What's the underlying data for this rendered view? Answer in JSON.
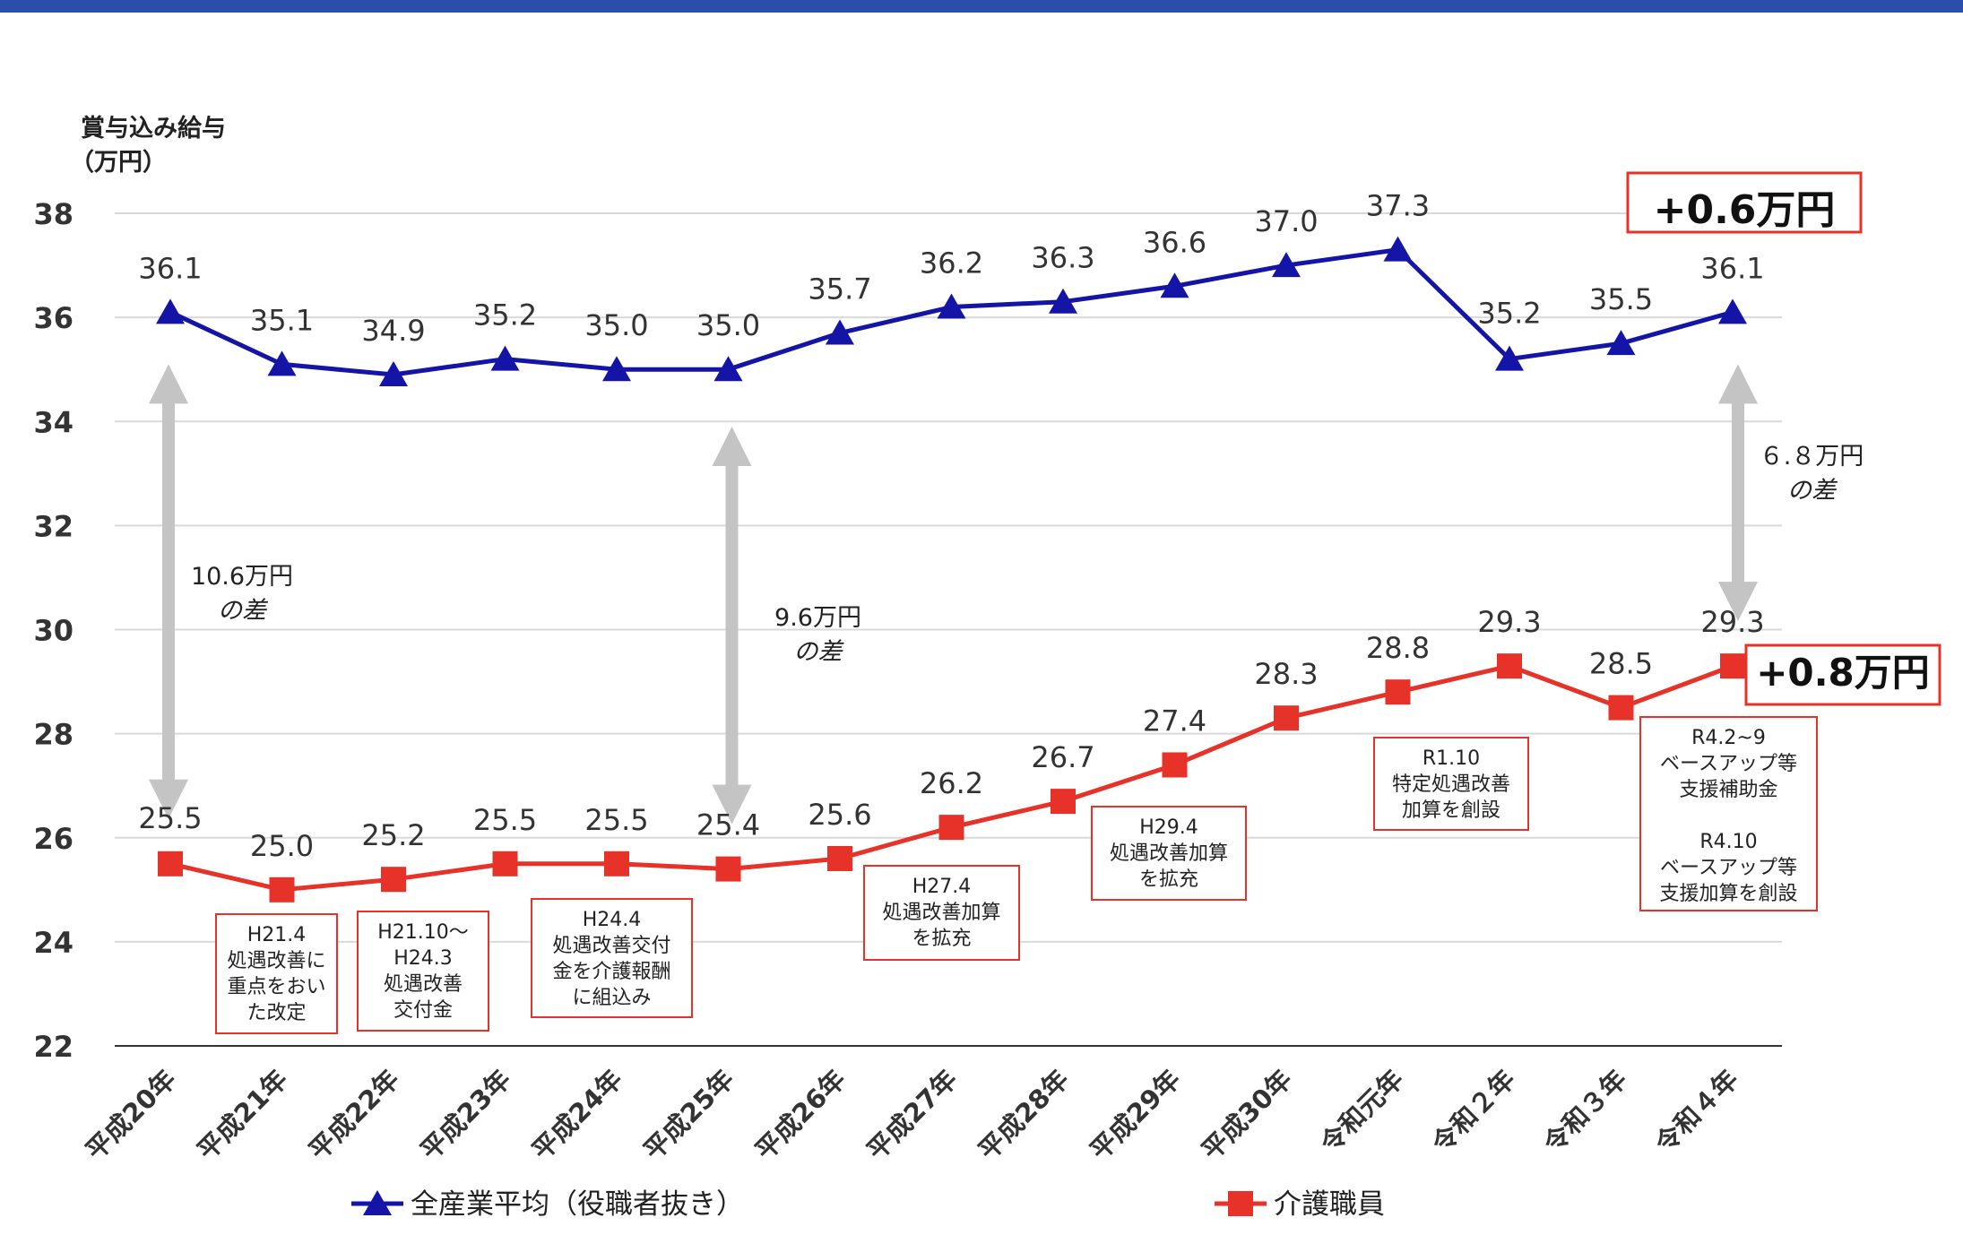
{
  "chart_data": {
    "type": "line",
    "ylabel_line1": "賞与込み給与",
    "ylabel_line2": "（万円）",
    "ylim": [
      22,
      38
    ],
    "yticks": [
      22,
      24,
      26,
      28,
      30,
      32,
      34,
      36,
      38
    ],
    "grid": true,
    "legend_position": "bottom",
    "categories": [
      "平成20年",
      "平成21年",
      "平成22年",
      "平成23年",
      "平成24年",
      "平成25年",
      "平成26年",
      "平成27年",
      "平成28年",
      "平成29年",
      "平成30年",
      "令和元年",
      "令和２年",
      "令和３年",
      "令和４年"
    ],
    "series": [
      {
        "name": "全産業平均（役職者抜き）",
        "color": "#1414a6",
        "marker": "triangle",
        "values": [
          36.1,
          35.1,
          34.9,
          35.2,
          35.0,
          35.0,
          35.7,
          36.2,
          36.3,
          36.6,
          37.0,
          37.3,
          35.2,
          35.5,
          36.1
        ]
      },
      {
        "name": "介護職員",
        "color": "#e63228",
        "marker": "square",
        "values": [
          25.5,
          25.0,
          25.2,
          25.5,
          25.5,
          25.4,
          25.6,
          26.2,
          26.7,
          27.4,
          28.3,
          28.8,
          29.3,
          28.5,
          29.3
        ]
      }
    ],
    "annotations": {
      "gaps": [
        {
          "category": "平成20年",
          "line1": "10.6万円",
          "line2": "の差"
        },
        {
          "category": "平成25年",
          "line1": "9.6万円",
          "line2": "の差"
        },
        {
          "category": "令和４年",
          "line1": "６.８万円",
          "line2": "の差"
        }
      ],
      "highlights": [
        {
          "series": 0,
          "text": "+0.6万円"
        },
        {
          "series": 1,
          "text": "+0.8万円"
        }
      ],
      "policy_notes": [
        {
          "category": "平成21年",
          "lines": [
            "H21.4",
            "処遇改善に",
            "重点をおい",
            "た改定"
          ]
        },
        {
          "category": "平成22年",
          "lines": [
            "H21.10～",
            "H24.3",
            "処遇改善",
            "交付金"
          ]
        },
        {
          "category": "平成24年",
          "lines": [
            "H24.4",
            "処遇改善交付",
            "金を介護報酬",
            "に組込み"
          ]
        },
        {
          "category": "平成27年",
          "lines": [
            "H27.4",
            "処遇改善加算",
            "を拡充"
          ]
        },
        {
          "category": "平成29年",
          "lines": [
            "H29.4",
            "処遇改善加算",
            "を拡充"
          ]
        },
        {
          "category": "令和元年",
          "lines": [
            "R1.10",
            "特定処遇改善",
            "加算を創設"
          ]
        },
        {
          "category": "令和４年",
          "lines": [
            "R4.2~9",
            "ベースアップ等",
            "支援補助金",
            "",
            "R4.10",
            "ベースアップ等",
            "支援加算を創設"
          ]
        }
      ]
    }
  }
}
